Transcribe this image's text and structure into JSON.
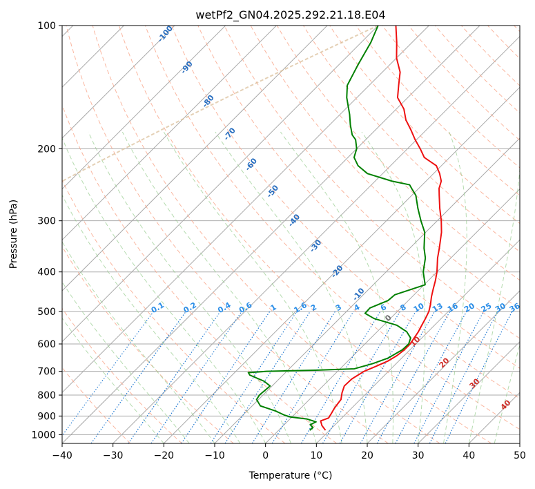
{
  "chart_data": {
    "type": "line",
    "title": "wetPf2_GN04.2025.292.21.18.E04",
    "xlabel": "Temperature (°C)",
    "ylabel": "Pressure (hPa)",
    "xlim": [
      -40,
      50
    ],
    "ylim": [
      1050,
      100
    ],
    "yscale": "log",
    "skew": "skew-T log-P (isotherms skewed 45°)",
    "grid": true,
    "x_ticks": [
      -40,
      -30,
      -20,
      -10,
      0,
      10,
      20,
      30,
      40,
      50
    ],
    "x_tick_labels": [
      "−40",
      "−30",
      "−20",
      "−10",
      "0",
      "10",
      "20",
      "30",
      "40",
      "50"
    ],
    "y_ticks": [
      1000,
      900,
      800,
      700,
      600,
      500,
      400,
      300,
      200,
      100
    ],
    "y_tick_labels": [
      "1000",
      "900",
      "800",
      "700",
      "600",
      "500",
      "400",
      "300",
      "200",
      "100"
    ],
    "series": [
      {
        "role": "temperature",
        "color": "#ee1111",
        "points": [
          [
            975,
            9.2
          ],
          [
            950,
            7.6
          ],
          [
            925,
            6.4
          ],
          [
            910,
            7.4
          ],
          [
            890,
            7.1
          ],
          [
            860,
            6.6
          ],
          [
            820,
            6.2
          ],
          [
            790,
            5.1
          ],
          [
            760,
            4.2
          ],
          [
            730,
            4.3
          ],
          [
            700,
            5.2
          ],
          [
            680,
            6.6
          ],
          [
            660,
            7.9
          ],
          [
            640,
            8.6
          ],
          [
            620,
            8.9
          ],
          [
            600,
            8.9
          ],
          [
            580,
            8.5
          ],
          [
            560,
            8.1
          ],
          [
            540,
            7.5
          ],
          [
            520,
            6.9
          ],
          [
            500,
            6.2
          ],
          [
            480,
            5.1
          ],
          [
            460,
            3.8
          ],
          [
            440,
            2.6
          ],
          [
            420,
            1.4
          ],
          [
            400,
            0.0
          ],
          [
            370,
            -2.6
          ],
          [
            350,
            -4.2
          ],
          [
            320,
            -6.9
          ],
          [
            300,
            -9.2
          ],
          [
            280,
            -11.9
          ],
          [
            260,
            -14.6
          ],
          [
            250,
            -16.0
          ],
          [
            240,
            -17.0
          ],
          [
            230,
            -18.8
          ],
          [
            220,
            -21.0
          ],
          [
            215,
            -23.0
          ],
          [
            210,
            -25.0
          ],
          [
            200,
            -27.5
          ],
          [
            190,
            -30.3
          ],
          [
            180,
            -33.0
          ],
          [
            170,
            -36.0
          ],
          [
            160,
            -38.5
          ],
          [
            150,
            -42.0
          ],
          [
            140,
            -44.2
          ],
          [
            130,
            -46.5
          ],
          [
            120,
            -50.0
          ],
          [
            110,
            -53.0
          ],
          [
            100,
            -56.5
          ]
        ]
      },
      {
        "role": "dewpoint",
        "color": "#008000",
        "points": [
          [
            975,
            6.1
          ],
          [
            960,
            6.2
          ],
          [
            945,
            5.1
          ],
          [
            930,
            5.7
          ],
          [
            915,
            3.3
          ],
          [
            905,
            -0.3
          ],
          [
            895,
            -1.9
          ],
          [
            875,
            -4.4
          ],
          [
            850,
            -8.4
          ],
          [
            820,
            -10.4
          ],
          [
            800,
            -10.7
          ],
          [
            760,
            -10.4
          ],
          [
            740,
            -12.5
          ],
          [
            715,
            -16.5
          ],
          [
            705,
            -17.3
          ],
          [
            700,
            -14.0
          ],
          [
            695,
            -4.0
          ],
          [
            690,
            2.8
          ],
          [
            670,
            5.4
          ],
          [
            650,
            7.3
          ],
          [
            620,
            8.5
          ],
          [
            600,
            8.6
          ],
          [
            580,
            7.8
          ],
          [
            560,
            5.8
          ],
          [
            540,
            2.6
          ],
          [
            520,
            -3.2
          ],
          [
            505,
            -6.0
          ],
          [
            490,
            -6.1
          ],
          [
            470,
            -4.0
          ],
          [
            455,
            -3.8
          ],
          [
            430,
            0.2
          ],
          [
            400,
            -2.7
          ],
          [
            370,
            -5.0
          ],
          [
            350,
            -7.2
          ],
          [
            320,
            -10.2
          ],
          [
            300,
            -13.2
          ],
          [
            280,
            -16.2
          ],
          [
            260,
            -19.2
          ],
          [
            250,
            -21.4
          ],
          [
            245,
            -22.5
          ],
          [
            240,
            -26.7
          ],
          [
            230,
            -33.0
          ],
          [
            220,
            -36.4
          ],
          [
            210,
            -38.8
          ],
          [
            200,
            -40.0
          ],
          [
            190,
            -42.0
          ],
          [
            185,
            -43.6
          ],
          [
            175,
            -45.9
          ],
          [
            165,
            -48.1
          ],
          [
            150,
            -52.0
          ],
          [
            140,
            -54.3
          ],
          [
            125,
            -56.2
          ],
          [
            110,
            -58.1
          ],
          [
            100,
            -60.0
          ]
        ]
      }
    ],
    "dry_adiabat_labels": [
      "-100",
      "-90",
      "-80",
      "-70",
      "-60",
      "-50",
      "-40",
      "-30",
      "-20",
      "-10"
    ],
    "mixing_ratio_labels": [
      "0.1",
      "0.2",
      "0.4",
      "0.6",
      "1",
      "1.6",
      "2",
      "3",
      "4",
      "6",
      "8",
      "10",
      "13",
      "16",
      "20",
      "25",
      "30",
      "36"
    ],
    "moist_adiabat_labels": [
      "0",
      "10",
      "20",
      "30",
      "40"
    ],
    "colors": {
      "isotherm": "#a9a9a9",
      "isobar": "#a9a9a9",
      "dry_adiabat": "#f9a98e",
      "moist_adiabat": "#9ccf94",
      "mixing_ratio": "#1f78d1",
      "dry_label": "#2a6fc0",
      "mixing_label": "#2b8ee8",
      "moist_label": "#d0302a",
      "moist_label_zero": "#707070",
      "ccl_arc": "#d9bc96"
    }
  }
}
